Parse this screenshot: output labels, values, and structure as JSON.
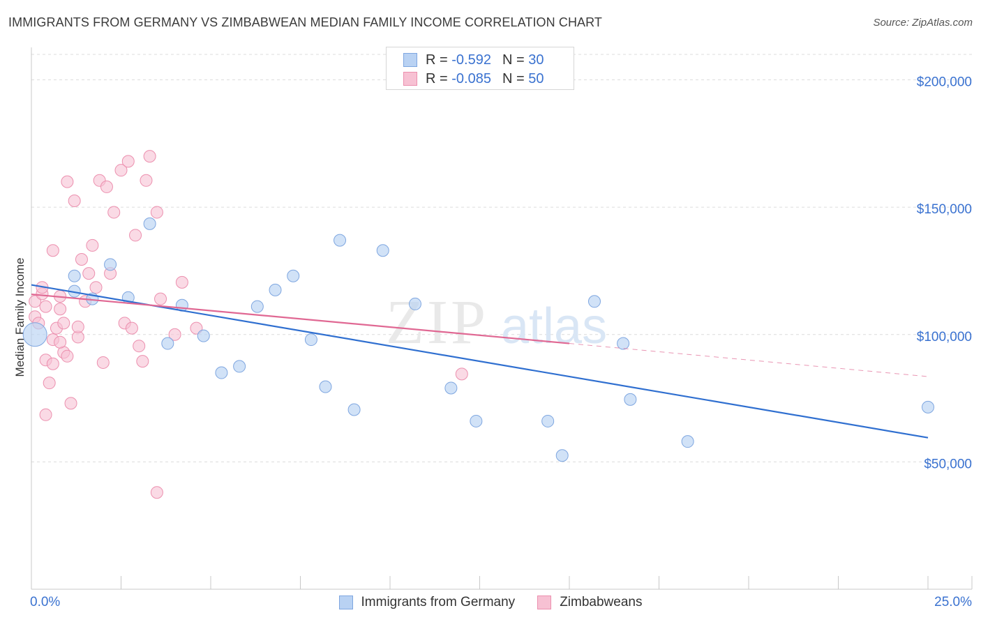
{
  "title": "IMMIGRANTS FROM GERMANY VS ZIMBABWEAN MEDIAN FAMILY INCOME CORRELATION CHART",
  "source": "Source: ZipAtlas.com",
  "watermark": {
    "zip": "ZIP",
    "atlas": "atlas"
  },
  "colors": {
    "blue_fill": "#b9d2f3",
    "blue_stroke": "#7ea6e0",
    "blue_line": "#2f6fd0",
    "pink_fill": "#f7c1d3",
    "pink_stroke": "#ec8fae",
    "pink_line": "#e06893",
    "axis_label": "#3a72d0",
    "grid": "#dcdcdc"
  },
  "legend": {
    "rows": [
      {
        "r_label": "R =",
        "r_value": "-0.592",
        "n_label": "N =",
        "n_value": "30"
      },
      {
        "r_label": "R =",
        "r_value": "-0.085",
        "n_label": "N =",
        "n_value": "50"
      }
    ]
  },
  "bottom_legend": [
    "Immigrants from Germany",
    "Zimbabweans"
  ],
  "chart_data": {
    "type": "scatter",
    "title": "IMMIGRANTS FROM GERMANY VS ZIMBABWEAN MEDIAN FAMILY INCOME CORRELATION CHART",
    "xlabel": "",
    "ylabel": "Median Family Income",
    "xlim": [
      0,
      25
    ],
    "ylim": [
      0,
      210000
    ],
    "x_tick_labels": [
      "0.0%",
      "25.0%"
    ],
    "y_ticks": [
      {
        "value": 200000,
        "label": "$200,000"
      },
      {
        "value": 150000,
        "label": "$150,000"
      },
      {
        "value": 100000,
        "label": "$100,000"
      },
      {
        "value": 50000,
        "label": "$50,000"
      }
    ],
    "series": [
      {
        "name": "Immigrants from Germany",
        "r": -0.592,
        "n": 30,
        "trend": {
          "x": [
            0,
            25
          ],
          "y": [
            119500,
            59500
          ]
        },
        "points": [
          [
            0.1,
            100000
          ],
          [
            1.2,
            123000
          ],
          [
            1.2,
            117000
          ],
          [
            1.7,
            114000
          ],
          [
            2.2,
            127500
          ],
          [
            2.7,
            114500
          ],
          [
            3.3,
            143500
          ],
          [
            3.8,
            96500
          ],
          [
            4.2,
            111500
          ],
          [
            4.8,
            99500
          ],
          [
            5.3,
            85000
          ],
          [
            5.8,
            87500
          ],
          [
            6.3,
            111000
          ],
          [
            6.8,
            117500
          ],
          [
            7.3,
            123000
          ],
          [
            7.8,
            98000
          ],
          [
            8.2,
            79500
          ],
          [
            8.6,
            137000
          ],
          [
            9.0,
            70500
          ],
          [
            9.8,
            133000
          ],
          [
            10.7,
            112000
          ],
          [
            11.7,
            79000
          ],
          [
            12.4,
            66000
          ],
          [
            14.4,
            66000
          ],
          [
            14.8,
            52500
          ],
          [
            15.7,
            113000
          ],
          [
            16.5,
            96500
          ],
          [
            16.7,
            74500
          ],
          [
            18.3,
            58000
          ],
          [
            25.0,
            71500
          ]
        ]
      },
      {
        "name": "Zimbabweans",
        "r": -0.085,
        "n": 50,
        "trend": {
          "x": [
            0,
            15
          ],
          "y": [
            115800,
            96500
          ]
        },
        "trend_dashed": {
          "x": [
            15,
            25
          ],
          "y": [
            96500,
            83500
          ]
        },
        "points": [
          [
            0.1,
            107000
          ],
          [
            0.1,
            113000
          ],
          [
            0.2,
            104500
          ],
          [
            0.3,
            116000
          ],
          [
            0.3,
            118500
          ],
          [
            0.4,
            111000
          ],
          [
            0.4,
            90000
          ],
          [
            0.4,
            68500
          ],
          [
            0.5,
            81000
          ],
          [
            0.6,
            98000
          ],
          [
            0.6,
            133000
          ],
          [
            0.6,
            88500
          ],
          [
            0.7,
            102500
          ],
          [
            0.8,
            110000
          ],
          [
            0.8,
            115000
          ],
          [
            0.9,
            104500
          ],
          [
            0.9,
            93000
          ],
          [
            1.0,
            91500
          ],
          [
            1.0,
            160000
          ],
          [
            1.1,
            73000
          ],
          [
            1.2,
            152500
          ],
          [
            1.3,
            99000
          ],
          [
            1.3,
            103000
          ],
          [
            1.4,
            129500
          ],
          [
            1.5,
            113000
          ],
          [
            1.6,
            124000
          ],
          [
            1.7,
            135000
          ],
          [
            1.8,
            118500
          ],
          [
            1.9,
            160500
          ],
          [
            2.0,
            89000
          ],
          [
            2.1,
            158000
          ],
          [
            2.2,
            124000
          ],
          [
            2.3,
            148000
          ],
          [
            2.5,
            164500
          ],
          [
            2.6,
            104500
          ],
          [
            2.7,
            168000
          ],
          [
            2.8,
            102500
          ],
          [
            2.9,
            139000
          ],
          [
            3.0,
            95500
          ],
          [
            3.1,
            89500
          ],
          [
            3.2,
            160500
          ],
          [
            3.3,
            170000
          ],
          [
            3.5,
            38000
          ],
          [
            3.5,
            148000
          ],
          [
            3.6,
            114000
          ],
          [
            4.0,
            100000
          ],
          [
            4.2,
            120500
          ],
          [
            4.6,
            102500
          ],
          [
            12.0,
            84500
          ],
          [
            0.8,
            97000
          ]
        ]
      }
    ]
  }
}
